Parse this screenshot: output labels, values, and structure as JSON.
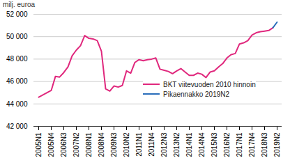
{
  "chart_data": {
    "type": "line",
    "y_label": "milj. euroa",
    "categories": [
      "2005N1",
      null,
      null,
      "2005N4",
      null,
      null,
      "2006N3",
      null,
      null,
      "2007N2",
      null,
      null,
      "2008N1",
      null,
      null,
      "2008N4",
      null,
      null,
      "2009N3",
      null,
      null,
      "2010N2",
      null,
      null,
      "2011N1",
      null,
      null,
      "2011N4",
      null,
      null,
      "2012N3",
      null,
      null,
      "2013N2",
      null,
      null,
      "2014N1",
      null,
      null,
      "2014N4",
      null,
      null,
      "2015N3",
      null,
      null,
      "2016N2",
      null,
      null,
      "2017N1",
      null,
      null,
      "2017N4",
      null,
      null,
      "2018N3",
      null,
      null,
      "2019N2"
    ],
    "series": [
      {
        "name": "BKT viitevuoden 2010 hinnoin",
        "color": "#e0287d",
        "values": [
          44600,
          44800,
          45000,
          45200,
          46450,
          46400,
          46800,
          47300,
          48300,
          48800,
          49200,
          50100,
          49850,
          49800,
          49650,
          48700,
          45350,
          45150,
          45600,
          45500,
          45650,
          46950,
          46750,
          47700,
          47950,
          47850,
          47950,
          48000,
          48100,
          47100,
          47000,
          46900,
          46700,
          46950,
          47150,
          46850,
          46550,
          46550,
          46750,
          46650,
          46350,
          46850,
          46950,
          47300,
          47600,
          48100,
          48400,
          48500,
          49350,
          49450,
          49650,
          50150,
          50350,
          50450,
          50500,
          50550,
          50800,
          null
        ]
      },
      {
        "name": "Pikaennakko 2019N2",
        "color": "#2a6ebb",
        "values": [
          null,
          null,
          null,
          null,
          null,
          null,
          null,
          null,
          null,
          null,
          null,
          null,
          null,
          null,
          null,
          null,
          null,
          null,
          null,
          null,
          null,
          null,
          null,
          null,
          null,
          null,
          null,
          null,
          null,
          null,
          null,
          null,
          null,
          null,
          null,
          null,
          null,
          null,
          null,
          null,
          null,
          null,
          null,
          null,
          null,
          null,
          null,
          null,
          null,
          null,
          null,
          null,
          null,
          null,
          null,
          null,
          50800,
          51300
        ]
      }
    ],
    "ylim": [
      42000,
      52000
    ],
    "yticks": [
      {
        "value": 42000,
        "label": "42 000"
      },
      {
        "value": 44000,
        "label": "44 000"
      },
      {
        "value": 46000,
        "label": "46 000"
      },
      {
        "value": 48000,
        "label": "48 000"
      },
      {
        "value": 50000,
        "label": "50 000"
      },
      {
        "value": 52000,
        "label": "52 000"
      }
    ],
    "grid": true,
    "legend": "bottom-right"
  }
}
